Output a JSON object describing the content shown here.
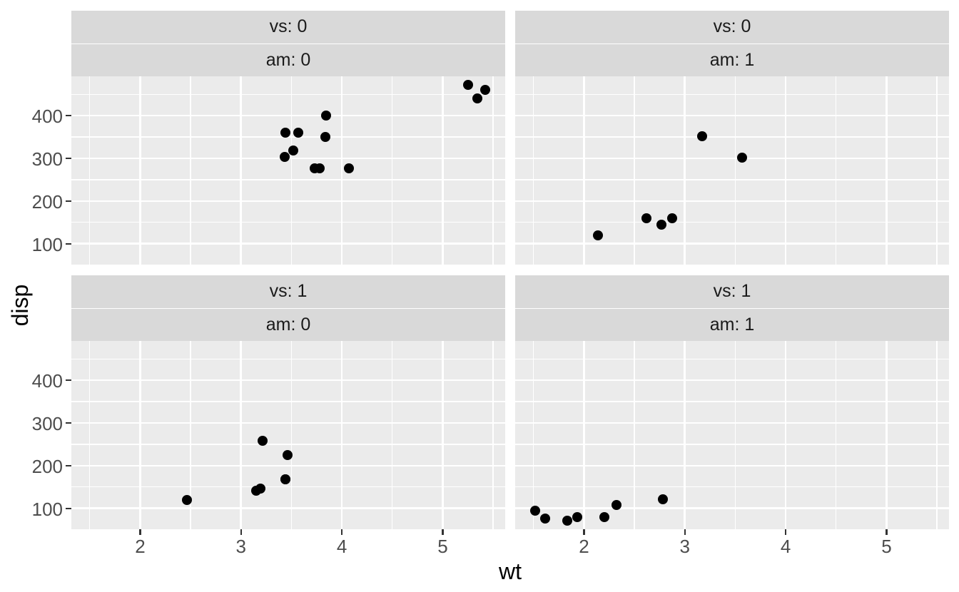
{
  "colors": {
    "figure_bg": "#FFFFFF",
    "panel_bg": "#EBEBEB",
    "strip_bg": "#D9D9D9",
    "grid": "#FFFFFF",
    "point": "#000000",
    "axis_text": "#4D4D4D",
    "strip_text": "#1A1A1A",
    "axis_title": "#000000",
    "tick_mark": "#333333"
  },
  "chart_data": {
    "type": "scatter",
    "title": "",
    "xlabel": "wt",
    "ylabel": "disp",
    "grid": true,
    "legend_position": "none",
    "xlim": [
      1.3175,
      5.6196
    ],
    "ylim": [
      51.06,
      492.04
    ],
    "x_ticks": [
      2,
      3,
      4,
      5
    ],
    "y_ticks": [
      100,
      200,
      300,
      400
    ],
    "x_minor_gridlines": [
      1.5,
      2.5,
      3.5,
      4.5,
      5.5
    ],
    "y_minor_gridlines": [
      150,
      250,
      350,
      450
    ],
    "facet_vars": [
      "vs",
      "am"
    ],
    "facets": [
      {
        "row": 0,
        "col": 0,
        "vs_label": "vs: 0",
        "am_label": "am: 0",
        "points": [
          [
            3.44,
            360
          ],
          [
            3.57,
            360
          ],
          [
            4.07,
            275.8
          ],
          [
            3.73,
            275.8
          ],
          [
            3.78,
            275.8
          ],
          [
            5.25,
            472
          ],
          [
            5.424,
            460
          ],
          [
            5.345,
            440
          ],
          [
            3.52,
            318
          ],
          [
            3.435,
            304
          ],
          [
            3.84,
            350
          ],
          [
            3.845,
            400
          ]
        ]
      },
      {
        "row": 0,
        "col": 1,
        "vs_label": "vs: 0",
        "am_label": "am: 1",
        "points": [
          [
            2.62,
            160
          ],
          [
            2.875,
            160
          ],
          [
            2.14,
            120.3
          ],
          [
            3.17,
            351
          ],
          [
            2.77,
            145
          ],
          [
            3.57,
            301
          ]
        ]
      },
      {
        "row": 1,
        "col": 0,
        "vs_label": "vs: 1",
        "am_label": "am: 0",
        "points": [
          [
            3.215,
            258
          ],
          [
            3.46,
            225
          ],
          [
            3.19,
            146.7
          ],
          [
            3.15,
            140.8
          ],
          [
            3.44,
            167.6
          ],
          [
            3.44,
            167.6
          ],
          [
            2.465,
            120.1
          ]
        ]
      },
      {
        "row": 1,
        "col": 1,
        "vs_label": "vs: 1",
        "am_label": "am: 1",
        "points": [
          [
            2.32,
            108
          ],
          [
            2.2,
            78.7
          ],
          [
            1.615,
            75.7
          ],
          [
            1.835,
            71.1
          ],
          [
            1.935,
            79
          ],
          [
            1.513,
            95.1
          ],
          [
            2.78,
            121
          ]
        ]
      }
    ]
  }
}
